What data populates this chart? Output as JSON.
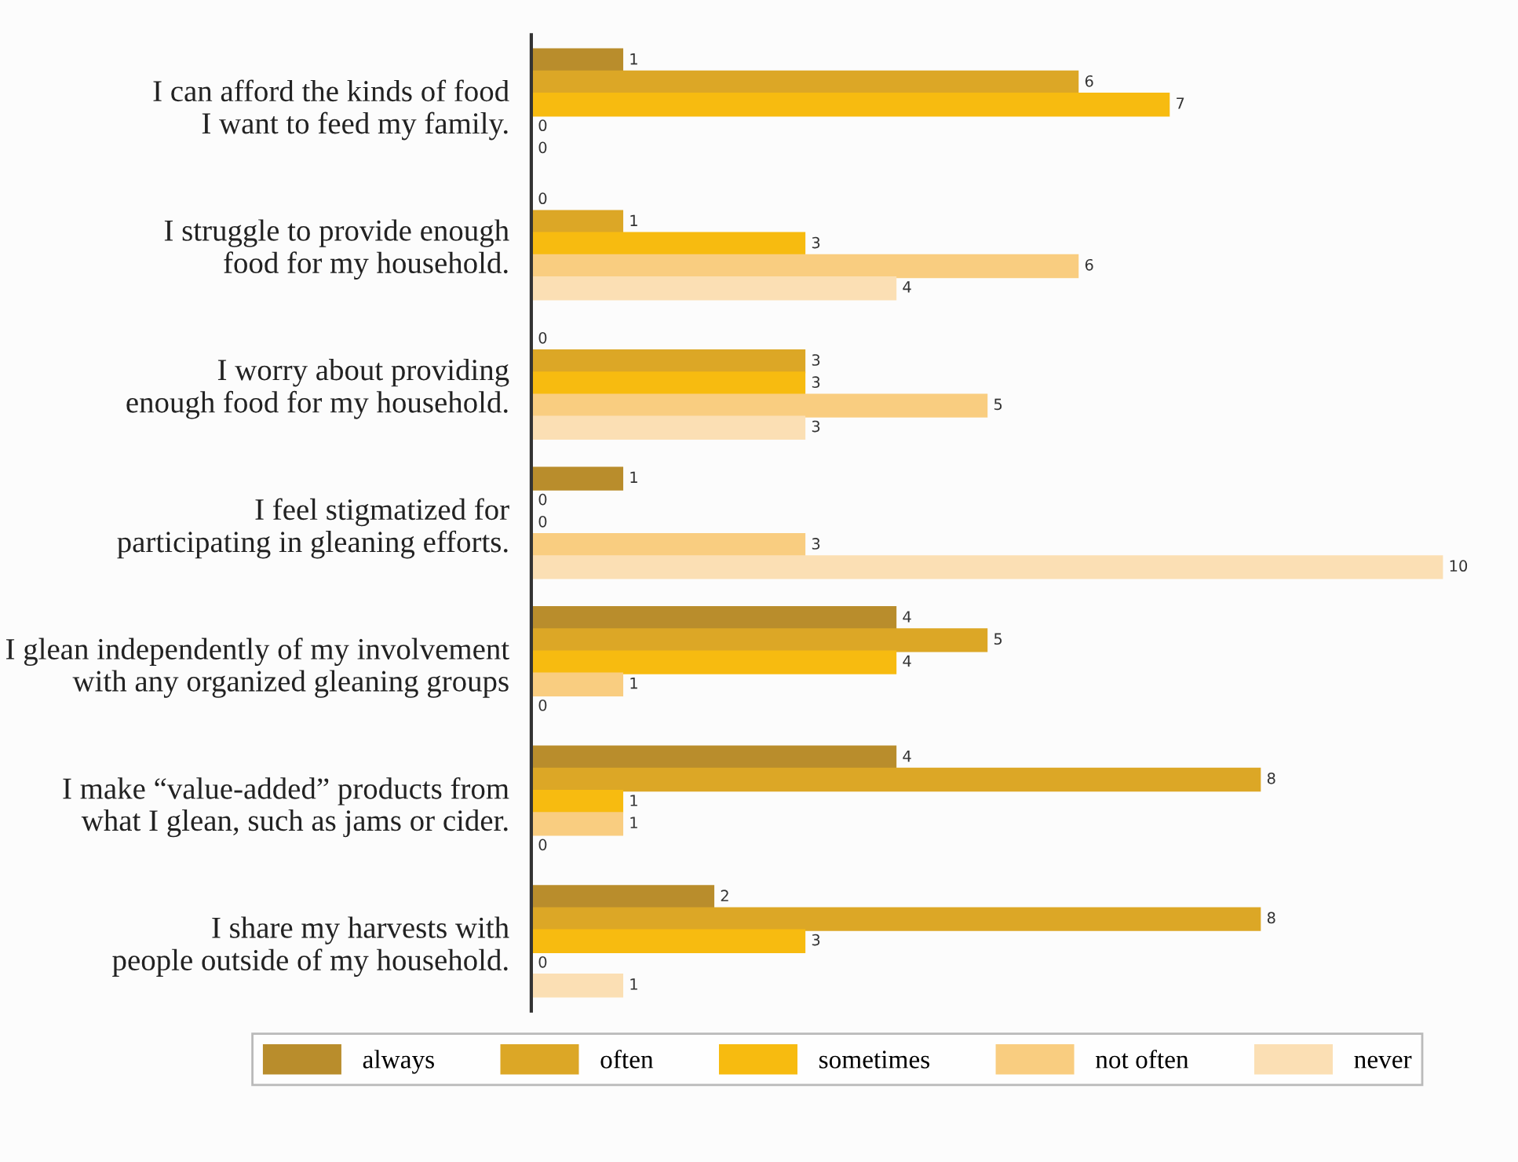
{
  "chart_data": {
    "type": "bar",
    "orientation": "horizontal",
    "data_labels": true,
    "legend": "bottom",
    "grid": false,
    "categories": [
      "I can afford the kinds of food\nI want to feed my family.",
      "I struggle to provide enough\nfood for my household.",
      "I worry about providing\nenough food for my household.",
      "I feel stigmatized for\nparticipating in gleaning efforts.",
      "I glean independently of my involvement\nwith any organized gleaning groups",
      "I make “value-added” products from\nwhat I glean, such as jams or cider.",
      "I share my harvests with\npeople outside of my household."
    ],
    "series": [
      {
        "name": "always",
        "color": "#b98d2c",
        "values": [
          1,
          0,
          0,
          1,
          4,
          4,
          2
        ]
      },
      {
        "name": "often",
        "color": "#dca726",
        "values": [
          6,
          1,
          3,
          0,
          5,
          8,
          8
        ]
      },
      {
        "name": "sometimes",
        "color": "#f7bb10",
        "values": [
          7,
          3,
          3,
          0,
          4,
          1,
          3
        ]
      },
      {
        "name": "not often",
        "color": "#f9cd80",
        "values": [
          0,
          6,
          5,
          3,
          1,
          1,
          0
        ]
      },
      {
        "name": "never",
        "color": "#fbdfb4",
        "values": [
          0,
          4,
          3,
          10,
          0,
          0,
          1
        ]
      }
    ]
  }
}
